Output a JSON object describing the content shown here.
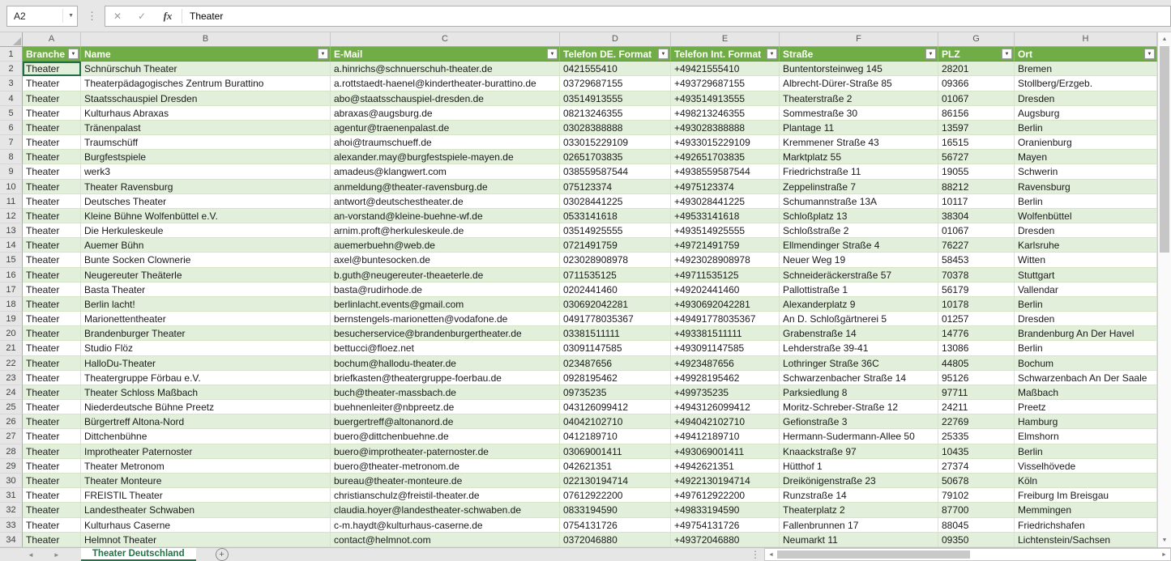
{
  "formula_bar": {
    "cell_ref": "A2",
    "formula": "Theater"
  },
  "icons": {
    "name_box_dropdown": "▼",
    "drag_handle_dots": "⋮",
    "cancel": "✕",
    "enter": "✓",
    "function": "fx",
    "filter_dropdown": "▼",
    "sheet_nav_left": "◄",
    "sheet_nav_right": "►",
    "add_sheet": "+",
    "scroll_up": "▲",
    "scroll_down": "▼",
    "scroll_left": "◄",
    "scroll_right": "►"
  },
  "columns": [
    "A",
    "B",
    "C",
    "D",
    "E",
    "F",
    "G",
    "H"
  ],
  "table": {
    "headers": [
      "Branche",
      "Name",
      "E-Mail",
      "Telefon DE. Format",
      "Telefon Int. Format",
      "Straße",
      "PLZ",
      "Ort"
    ],
    "rows": [
      [
        "Theater",
        "Schnürschuh Theater",
        "a.hinrichs@schnuerschuh-theater.de",
        "0421555410",
        "+49421555410",
        "Buntentorsteinweg 145",
        "28201",
        "Bremen"
      ],
      [
        "Theater",
        "Theaterpädagogisches Zentrum Burattino",
        "a.rottstaedt-haenel@kindertheater-burattino.de",
        "03729687155",
        "+493729687155",
        "Albrecht-Dürer-Straße 85",
        "09366",
        "Stollberg/Erzgeb."
      ],
      [
        "Theater",
        "Staatsschauspiel Dresden",
        "abo@staatsschauspiel-dresden.de",
        "03514913555",
        "+493514913555",
        "Theaterstraße 2",
        "01067",
        "Dresden"
      ],
      [
        "Theater",
        "Kulturhaus Abraxas",
        "abraxas@augsburg.de",
        "08213246355",
        "+498213246355",
        "Sommestraße 30",
        "86156",
        "Augsburg"
      ],
      [
        "Theater",
        "Tränenpalast",
        "agentur@traenenpalast.de",
        "03028388888",
        "+493028388888",
        "Plantage 11",
        "13597",
        "Berlin"
      ],
      [
        "Theater",
        "Traumschüff",
        "ahoi@traumschueff.de",
        "033015229109",
        "+4933015229109",
        "Kremmener Straße 43",
        "16515",
        "Oranienburg"
      ],
      [
        "Theater",
        "Burgfestspiele",
        "alexander.may@burgfestspiele-mayen.de",
        "02651703835",
        "+492651703835",
        "Marktplatz 55",
        "56727",
        "Mayen"
      ],
      [
        "Theater",
        "werk3",
        "amadeus@klangwert.com",
        "038559587544",
        "+4938559587544",
        "Friedrichstraße 11",
        "19055",
        "Schwerin"
      ],
      [
        "Theater",
        "Theater Ravensburg",
        "anmeldung@theater-ravensburg.de",
        "075123374",
        "+4975123374",
        "Zeppelinstraße 7",
        "88212",
        "Ravensburg"
      ],
      [
        "Theater",
        "Deutsches Theater",
        "antwort@deutschestheater.de",
        "03028441225",
        "+493028441225",
        "Schumannstraße 13A",
        "10117",
        "Berlin"
      ],
      [
        "Theater",
        "Kleine Bühne Wolfenbüttel e.V.",
        "an-vorstand@kleine-buehne-wf.de",
        "0533141618",
        "+49533141618",
        "Schloßplatz 13",
        "38304",
        "Wolfenbüttel"
      ],
      [
        "Theater",
        "Die Herkuleskeule",
        "arnim.proft@herkuleskeule.de",
        "03514925555",
        "+493514925555",
        "Schloßstraße 2",
        "01067",
        "Dresden"
      ],
      [
        "Theater",
        "Auemer Bühn",
        "auemerbuehn@web.de",
        "0721491759",
        "+49721491759",
        "Ellmendinger Straße 4",
        "76227",
        "Karlsruhe"
      ],
      [
        "Theater",
        "Bunte Socken Clownerie",
        "axel@buntesocken.de",
        "023028908978",
        "+4923028908978",
        "Neuer Weg 19",
        "58453",
        "Witten"
      ],
      [
        "Theater",
        "Neugereuter Theäterle",
        "b.guth@neugereuter-theaeterle.de",
        "0711535125",
        "+49711535125",
        "Schneideräckerstraße 57",
        "70378",
        "Stuttgart"
      ],
      [
        "Theater",
        "Basta Theater",
        "basta@rudirhode.de",
        "0202441460",
        "+49202441460",
        "Pallottistraße 1",
        "56179",
        "Vallendar"
      ],
      [
        "Theater",
        "Berlin lacht!",
        "berlinlacht.events@gmail.com",
        "030692042281",
        "+4930692042281",
        "Alexanderplatz 9",
        "10178",
        "Berlin"
      ],
      [
        "Theater",
        "Marionettentheater",
        "bernstengels-marionetten@vodafone.de",
        "0491778035367",
        "+49491778035367",
        "An D. Schloßgärtnerei 5",
        "01257",
        "Dresden"
      ],
      [
        "Theater",
        "Brandenburger Theater",
        "besucherservice@brandenburgertheater.de",
        "03381511111",
        "+493381511111",
        "Grabenstraße 14",
        "14776",
        "Brandenburg An Der Havel"
      ],
      [
        "Theater",
        "Studio Flöz",
        "bettucci@floez.net",
        "03091147585",
        "+493091147585",
        "Lehderstraße 39-41",
        "13086",
        "Berlin"
      ],
      [
        "Theater",
        "HalloDu-Theater",
        "bochum@hallodu-theater.de",
        "023487656",
        "+4923487656",
        "Lothringer Straße 36C",
        "44805",
        "Bochum"
      ],
      [
        "Theater",
        "Theatergruppe Förbau e.V.",
        "briefkasten@theatergruppe-foerbau.de",
        "0928195462",
        "+49928195462",
        "Schwarzenbacher Straße 14",
        "95126",
        "Schwarzenbach An Der Saale"
      ],
      [
        "Theater",
        "Theater Schloss Maßbach",
        "buch@theater-massbach.de",
        "09735235",
        "+499735235",
        "Parksiedlung 8",
        "97711",
        "Maßbach"
      ],
      [
        "Theater",
        "Niederdeutsche Bühne Preetz",
        "buehnenleiter@nbpreetz.de",
        "043126099412",
        "+4943126099412",
        "Moritz-Schreber-Straße 12",
        "24211",
        "Preetz"
      ],
      [
        "Theater",
        "Bürgertreff Altona-Nord",
        "buergertreff@altonanord.de",
        "04042102710",
        "+494042102710",
        "Gefionstraße 3",
        "22769",
        "Hamburg"
      ],
      [
        "Theater",
        "Dittchenbühne",
        "buero@dittchenbuehne.de",
        "0412189710",
        "+49412189710",
        "Hermann-Sudermann-Allee 50",
        "25335",
        "Elmshorn"
      ],
      [
        "Theater",
        "Improtheater Paternoster",
        "buero@improtheater-paternoster.de",
        "03069001411",
        "+493069001411",
        "Knaackstraße 97",
        "10435",
        "Berlin"
      ],
      [
        "Theater",
        "Theater Metronom",
        "buero@theater-metronom.de",
        "042621351",
        "+4942621351",
        "Hütthof 1",
        "27374",
        "Visselhövede"
      ],
      [
        "Theater",
        "Theater Monteure",
        "bureau@theater-monteure.de",
        "022130194714",
        "+4922130194714",
        "Dreikönigenstraße 23",
        "50678",
        "Köln"
      ],
      [
        "Theater",
        "FREISTIL Theater",
        "christianschulz@freistil-theater.de",
        "07612922200",
        "+497612922200",
        "Runzstraße 14",
        "79102",
        "Freiburg Im Breisgau"
      ],
      [
        "Theater",
        "Landestheater Schwaben",
        "claudia.hoyer@landestheater-schwaben.de",
        "0833194590",
        "+49833194590",
        "Theaterplatz 2",
        "87700",
        "Memmingen"
      ],
      [
        "Theater",
        "Kulturhaus Caserne",
        "c-m.haydt@kulturhaus-caserne.de",
        "0754131726",
        "+49754131726",
        "Fallenbrunnen 17",
        "88045",
        "Friedrichshafen"
      ],
      [
        "Theater",
        "Helmnot Theater",
        "contact@helmnot.com",
        "0372046880",
        "+49372046880",
        "Neumarkt 11",
        "09350",
        "Lichtenstein/Sachsen"
      ]
    ]
  },
  "sheet_bar": {
    "active_tab": "Theater Deutschland"
  },
  "colors": {
    "header_green": "#70AD47",
    "band_green": "#E2EFDA",
    "active_tab_green": "#217346",
    "grid_line": "#D5E6C6"
  }
}
